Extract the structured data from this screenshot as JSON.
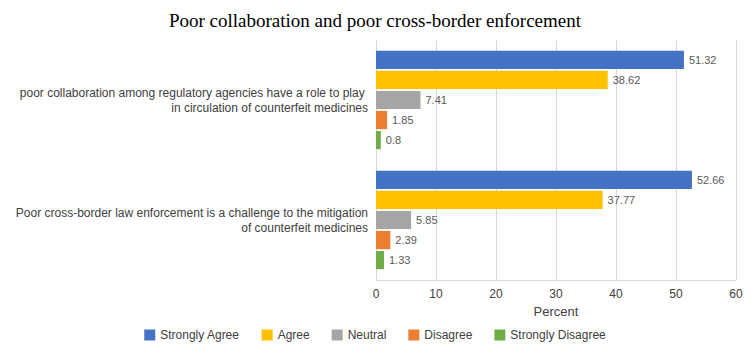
{
  "chart_data": {
    "type": "bar",
    "orientation": "horizontal",
    "title": "Poor collaboration and poor cross-border enforcement",
    "x_label": "Percent",
    "categories": [
      "poor collaboration among regulatory agencies have a role to play in circulation of counterfeit medicines",
      "Poor cross-border law enforcement is a challenge to the mitigation of counterfeit medicines"
    ],
    "series": [
      {
        "name": "Strongly Agree",
        "color": "#4472c4",
        "values": [
          51.32,
          52.66
        ]
      },
      {
        "name": "Agree",
        "color": "#ffc000",
        "values": [
          38.62,
          37.77
        ]
      },
      {
        "name": "Neutral",
        "color": "#a5a5a5",
        "values": [
          7.41,
          5.85
        ]
      },
      {
        "name": "Disagree",
        "color": "#ed7d31",
        "values": [
          1.85,
          2.39
        ]
      },
      {
        "name": "Strongly Disagree",
        "color": "#70ad47",
        "values": [
          0.8,
          1.33
        ]
      }
    ],
    "xlim": [
      0,
      60
    ],
    "xticks": [
      0,
      10,
      20,
      30,
      40,
      50,
      60
    ],
    "grid": true,
    "legend": "bottom",
    "data_labels": true
  }
}
